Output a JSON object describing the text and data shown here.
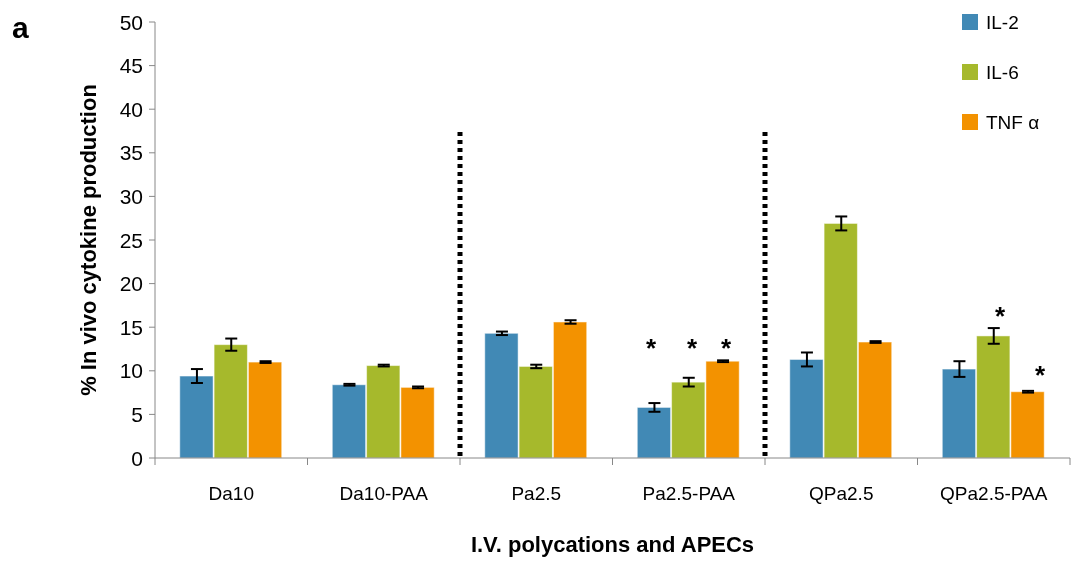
{
  "chart_data": {
    "type": "bar",
    "xlabel": "I.V. polycations and APECs",
    "ylabel": "% In vivo cytokine production",
    "categories": [
      "Da10",
      "Da10-PAA",
      "Pa2.5",
      "Pa2.5-PAA",
      "QPa2.5",
      "QPa2.5-PAA"
    ],
    "series": [
      {
        "name": "IL-2",
        "color": "#4189b5",
        "values": [
          9.4,
          8.4,
          14.3,
          5.8,
          11.3,
          10.2
        ],
        "errors": [
          0.8,
          0.1,
          0.2,
          0.5,
          0.8,
          0.9
        ]
      },
      {
        "name": "IL-6",
        "color": "#a6b92c",
        "values": [
          13.0,
          10.6,
          10.5,
          8.7,
          26.9,
          14.0
        ],
        "errors": [
          0.7,
          0.1,
          0.2,
          0.5,
          0.8,
          0.9
        ]
      },
      {
        "name": "TNF α",
        "color": "#f39200",
        "values": [
          11.0,
          8.1,
          15.6,
          11.1,
          13.3,
          7.6
        ],
        "errors": [
          0.1,
          0.1,
          0.2,
          0.1,
          0.1,
          0.1
        ]
      }
    ],
    "ylim": [
      0,
      50
    ],
    "yticks": [
      0,
      5,
      10,
      15,
      20,
      25,
      30,
      35,
      40,
      45,
      50
    ],
    "grid": false,
    "legend": "top right",
    "annotations": [
      "a",
      "*",
      "*",
      "*",
      "*",
      "*"
    ]
  }
}
